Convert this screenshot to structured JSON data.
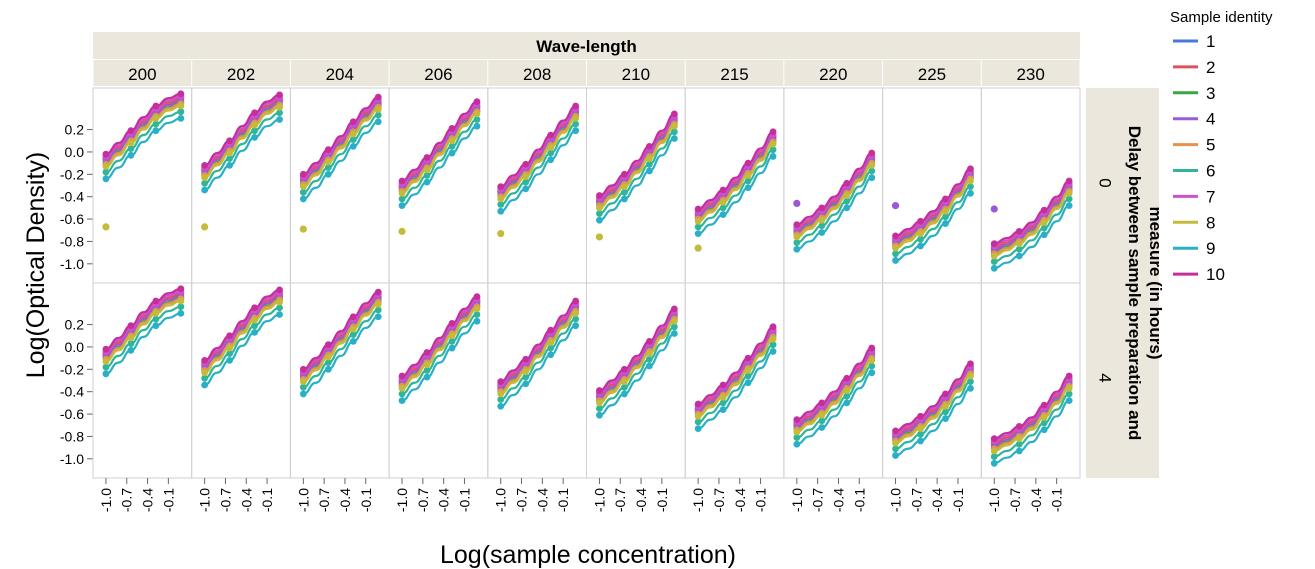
{
  "chart_data": {
    "type": "scatter",
    "column_header": "Wave-length",
    "row_header_lines": [
      "Delay between sample preparation and",
      "measure (in hours)"
    ],
    "ylabel": "Log(Optical Density)",
    "xlabel": "Log(sample concentration)",
    "x_ticks": [
      "-1.0",
      "-0.7",
      "-0.4",
      "-0.1"
    ],
    "y_ticks": [
      "0.2",
      "0.0",
      "-0.2",
      "-0.4",
      "-0.6",
      "-0.8",
      "-1.0"
    ],
    "xlim": [
      -1.1,
      0.15
    ],
    "ylim": [
      -1.1,
      0.5
    ],
    "wavelengths": [
      "200",
      "202",
      "204",
      "206",
      "208",
      "210",
      "215",
      "220",
      "225",
      "230"
    ],
    "delays": [
      "0",
      "4"
    ],
    "x_points": [
      -1.0,
      -0.82,
      -0.64,
      -0.46,
      -0.28,
      -0.1,
      0.08
    ],
    "base_y": {
      "200": [
        -0.06,
        0.04,
        0.15,
        0.27,
        0.37,
        0.44,
        0.48
      ],
      "202": [
        -0.16,
        -0.05,
        0.06,
        0.19,
        0.31,
        0.41,
        0.47
      ],
      "204": [
        -0.24,
        -0.14,
        -0.02,
        0.1,
        0.23,
        0.35,
        0.45
      ],
      "206": [
        -0.3,
        -0.2,
        -0.09,
        0.04,
        0.17,
        0.3,
        0.41
      ],
      "208": [
        -0.35,
        -0.25,
        -0.15,
        -0.02,
        0.11,
        0.24,
        0.37
      ],
      "210": [
        -0.43,
        -0.34,
        -0.24,
        -0.12,
        0.01,
        0.15,
        0.3
      ],
      "215": [
        -0.55,
        -0.47,
        -0.38,
        -0.27,
        -0.14,
        -0.01,
        0.14
      ],
      "220": [
        -0.69,
        -0.62,
        -0.54,
        -0.44,
        -0.32,
        -0.19,
        -0.05
      ],
      "225": [
        -0.79,
        -0.73,
        -0.66,
        -0.57,
        -0.46,
        -0.33,
        -0.19
      ],
      "230": [
        -0.86,
        -0.81,
        -0.75,
        -0.67,
        -0.56,
        -0.44,
        -0.3
      ]
    },
    "sample_offsets": [
      0.0,
      0.0,
      -0.04,
      -0.02,
      -0.05,
      -0.12,
      0.02,
      -0.07,
      -0.18,
      0.04
    ],
    "outliers_delay0": {
      "200": {
        "x": -1.0,
        "y": -0.67,
        "sample": "8"
      },
      "202": {
        "x": -1.0,
        "y": -0.67,
        "sample": "8"
      },
      "204": {
        "x": -1.0,
        "y": -0.69,
        "sample": "8"
      },
      "206": {
        "x": -1.0,
        "y": -0.71,
        "sample": "8"
      },
      "208": {
        "x": -1.0,
        "y": -0.73,
        "sample": "8"
      },
      "210": {
        "x": -1.0,
        "y": -0.76,
        "sample": "8"
      },
      "215": {
        "x": -1.0,
        "y": -0.86,
        "sample": "8"
      },
      "220": {
        "x": -1.0,
        "y": -0.46,
        "sample": "4"
      },
      "225": {
        "x": -1.0,
        "y": -0.48,
        "sample": "4"
      },
      "230": {
        "x": -1.0,
        "y": -0.51,
        "sample": "4"
      }
    },
    "series": [
      {
        "name": "1",
        "color": "#4a78d8"
      },
      {
        "name": "2",
        "color": "#e0525a"
      },
      {
        "name": "3",
        "color": "#34a845"
      },
      {
        "name": "4",
        "color": "#9b59d6"
      },
      {
        "name": "5",
        "color": "#e3934a"
      },
      {
        "name": "6",
        "color": "#2fb59a"
      },
      {
        "name": "7",
        "color": "#d24fd1"
      },
      {
        "name": "8",
        "color": "#c3bb3c"
      },
      {
        "name": "9",
        "color": "#2ab0c6"
      },
      {
        "name": "10",
        "color": "#c52f9c"
      }
    ],
    "legend_title": "Sample identity",
    "legend_position": "right",
    "grid": false
  }
}
